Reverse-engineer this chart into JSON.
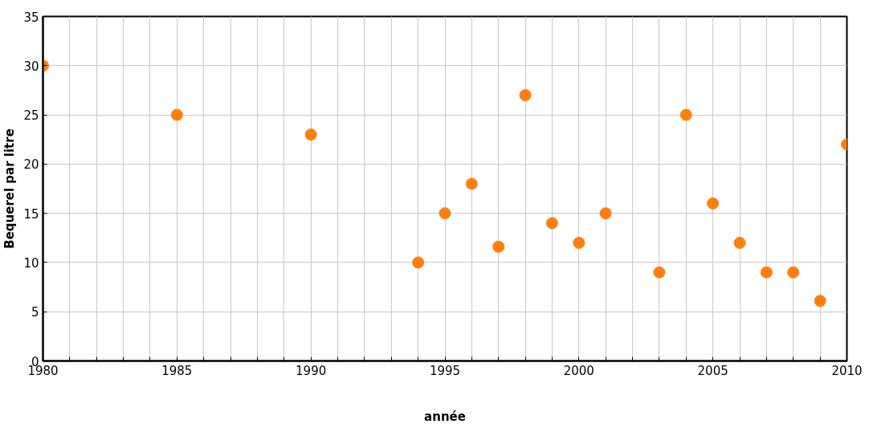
{
  "chart_data": {
    "type": "scatter",
    "xlabel": "année",
    "ylabel": "Bequerel par litre",
    "x": [
      1980,
      1985,
      1990,
      1994,
      1995,
      1996,
      1997,
      1998,
      1999,
      2000,
      2001,
      2003,
      2004,
      2005,
      2006,
      2007,
      2008,
      2009,
      2010
    ],
    "series": [
      {
        "color": "#ff7f0e",
        "values": [
          30,
          25,
          23,
          10,
          15,
          18,
          11.6,
          27,
          14,
          12,
          15,
          9,
          25,
          16,
          12,
          9,
          9,
          6.1,
          22
        ]
      }
    ],
    "xlim": [
      1980,
      2010
    ],
    "xticks": [
      1980,
      {
        "value": 1981,
        "label": null
      },
      {
        "value": 1982,
        "label": null
      },
      {
        "value": 1983,
        "label": null
      },
      {
        "value": 1984,
        "label": null
      },
      1985,
      {
        "value": 1986,
        "label": null
      },
      {
        "value": 1987,
        "label": null
      },
      {
        "value": 1988,
        "label": null
      },
      {
        "value": 1989,
        "label": null
      },
      1990,
      {
        "value": 1991,
        "label": null
      },
      {
        "value": 1992,
        "label": null
      },
      {
        "value": 1993,
        "label": null
      },
      {
        "value": 1994,
        "label": null
      },
      1995,
      {
        "value": 1996,
        "label": null
      },
      {
        "value": 1997,
        "label": null
      },
      {
        "value": 1998,
        "label": null
      },
      {
        "value": 1999,
        "label": null
      },
      2000,
      {
        "value": 2001,
        "label": null
      },
      {
        "value": 2002,
        "label": null
      },
      {
        "value": 2003,
        "label": null
      },
      {
        "value": 2004,
        "label": null
      },
      2005,
      {
        "value": 2006,
        "label": null
      },
      {
        "value": 2007,
        "label": null
      },
      {
        "value": 2008,
        "label": null
      },
      {
        "value": 2009,
        "label": null
      },
      2010
    ],
    "ylim": [
      0,
      35
    ],
    "yticks": [
      0,
      5,
      10,
      15,
      20,
      25,
      30,
      35
    ],
    "grid": true,
    "marker": "circle"
  }
}
